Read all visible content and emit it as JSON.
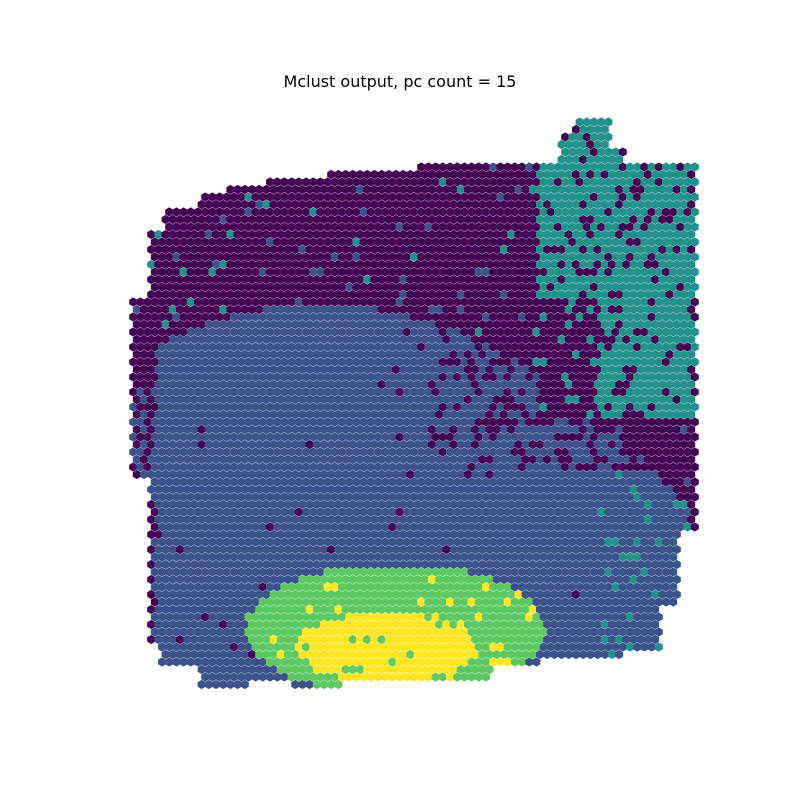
{
  "chart_data": {
    "type": "scatter",
    "title": "Mclust output, pc count = 15",
    "xlabel": "",
    "ylabel": "",
    "axes_visible": false,
    "grid": false,
    "legend": "none",
    "marker": "hexagon",
    "palette": {
      "cluster_1": "#440154",
      "cluster_2": "#3b528b",
      "cluster_3": "#21918c",
      "cluster_4": "#5ec962",
      "cluster_5": "#fde725"
    },
    "clusters": [
      {
        "id": 1,
        "color": "#440154",
        "region": "upper band and scattered spots on the left edge"
      },
      {
        "id": 2,
        "color": "#3b528b",
        "region": "large central and lower body"
      },
      {
        "id": 3,
        "color": "#21918c",
        "region": "upper-right corner region"
      },
      {
        "id": 4,
        "color": "#5ec962",
        "region": "arc around the bottom yellow core"
      },
      {
        "id": 5,
        "color": "#fde725",
        "region": "bottom-center core"
      }
    ]
  }
}
